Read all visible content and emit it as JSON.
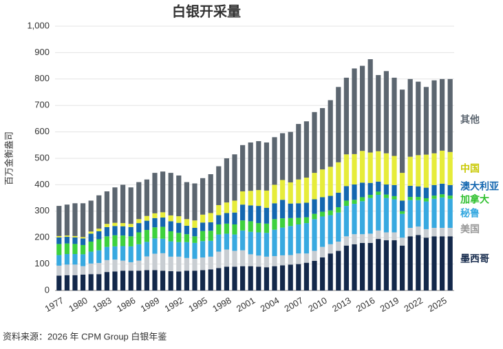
{
  "chart_data": {
    "type": "stacked_bar",
    "title": "白银开采量",
    "y_label": "百万金衡盎司",
    "source": "资料来源：2026 年 CPM Group 白银年鉴",
    "categories": [
      "1977",
      null,
      null,
      "1980",
      null,
      null,
      "1983",
      null,
      null,
      "1986",
      null,
      null,
      "1989",
      null,
      null,
      "1992",
      null,
      null,
      "1995",
      null,
      null,
      "1998",
      null,
      null,
      "2001",
      null,
      null,
      "2004",
      null,
      null,
      "2007",
      null,
      null,
      "2010",
      null,
      null,
      "2013",
      null,
      null,
      "2016",
      null,
      null,
      "2019",
      null,
      null,
      "2022",
      null,
      null,
      "2025",
      null
    ],
    "series": [
      {
        "name": "墨西哥",
        "color": "#13284a",
        "values": [
          56,
          58,
          58,
          60,
          62,
          62,
          70,
          72,
          75,
          75,
          75,
          77,
          77,
          75,
          73,
          72,
          75,
          75,
          77,
          80,
          85,
          90,
          90,
          92,
          92,
          90,
          88,
          92,
          95,
          98,
          100,
          105,
          112,
          125,
          140,
          150,
          170,
          175,
          180,
          180,
          195,
          190,
          190,
          170,
          205,
          210,
          200,
          205,
          205,
          205
        ]
      },
      {
        "name": "美国",
        "color": "#c8cdd2",
        "values": [
          38,
          40,
          40,
          32,
          40,
          42,
          45,
          45,
          38,
          32,
          38,
          52,
          62,
          66,
          55,
          56,
          48,
          45,
          48,
          48,
          62,
          65,
          60,
          60,
          45,
          42,
          40,
          38,
          38,
          36,
          40,
          35,
          38,
          40,
          35,
          35,
          35,
          38,
          33,
          35,
          32,
          30,
          30,
          30,
          32,
          32,
          32,
          32,
          32,
          32
        ]
      },
      {
        "name": "秘鲁",
        "color": "#38a9e0",
        "values": [
          40,
          40,
          40,
          45,
          45,
          48,
          50,
          50,
          55,
          60,
          62,
          55,
          58,
          55,
          58,
          55,
          60,
          60,
          62,
          60,
          65,
          60,
          62,
          75,
          85,
          88,
          90,
          100,
          105,
          110,
          110,
          115,
          120,
          115,
          110,
          110,
          115,
          115,
          125,
          135,
          135,
          130,
          125,
          90,
          105,
          100,
          105,
          110,
          115,
          110
        ]
      },
      {
        "name": "加拿大",
        "color": "#3ed13e",
        "values": [
          42,
          40,
          38,
          35,
          38,
          42,
          40,
          42,
          40,
          38,
          45,
          45,
          42,
          45,
          38,
          35,
          30,
          25,
          38,
          38,
          38,
          38,
          38,
          38,
          40,
          35,
          35,
          40,
          35,
          30,
          25,
          22,
          20,
          18,
          18,
          20,
          20,
          15,
          15,
          12,
          12,
          13,
          12,
          10,
          12,
          12,
          12,
          12,
          12,
          12
        ]
      },
      {
        "name": "澳大利亚",
        "color": "#1467b0",
        "values": [
          25,
          25,
          25,
          25,
          30,
          30,
          35,
          35,
          35,
          35,
          35,
          35,
          35,
          35,
          38,
          38,
          32,
          32,
          32,
          32,
          35,
          40,
          45,
          60,
          60,
          65,
          60,
          60,
          70,
          55,
          55,
          55,
          55,
          55,
          55,
          55,
          55,
          58,
          55,
          45,
          38,
          38,
          42,
          40,
          42,
          40,
          40,
          40,
          40,
          40
        ]
      },
      {
        "name": "中国",
        "color": "#e6ec3a",
        "values": [
          5,
          5,
          5,
          5,
          8,
          10,
          12,
          12,
          12,
          12,
          15,
          18,
          18,
          20,
          22,
          25,
          25,
          28,
          30,
          35,
          38,
          40,
          45,
          50,
          55,
          60,
          65,
          70,
          75,
          80,
          90,
          95,
          100,
          105,
          110,
          115,
          120,
          115,
          120,
          115,
          115,
          118,
          110,
          105,
          110,
          118,
          125,
          120,
          125,
          125
        ]
      },
      {
        "name": "其他",
        "color": "#5c6670",
        "values": [
          114,
          117,
          124,
          128,
          117,
          126,
          123,
          134,
          145,
          138,
          140,
          138,
          153,
          154,
          161,
          154,
          140,
          140,
          138,
          147,
          147,
          167,
          175,
          175,
          183,
          185,
          182,
          180,
          177,
          191,
          210,
          213,
          230,
          232,
          252,
          285,
          290,
          324,
          322,
          353,
          288,
          311,
          296,
          315,
          294,
          278,
          256,
          276,
          271,
          276
        ]
      }
    ],
    "ylim": [
      0,
      1000
    ],
    "yticks": [
      0,
      100,
      200,
      300,
      400,
      500,
      600,
      700,
      800,
      900,
      {
        "value": 1000,
        "label": "1,000"
      }
    ],
    "grid": true
  }
}
